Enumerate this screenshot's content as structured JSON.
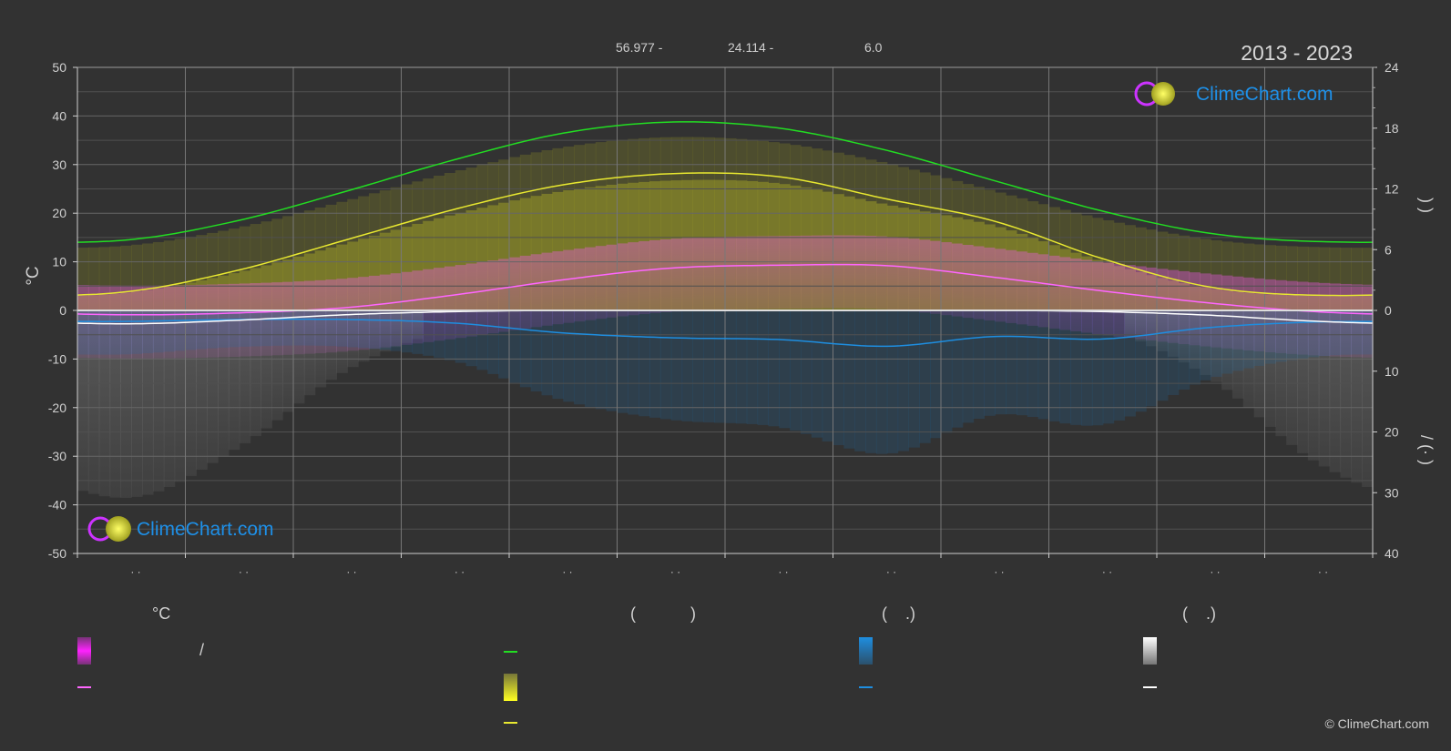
{
  "header": {
    "coords": [
      "56.977 -",
      "24.114 -",
      "6.0"
    ],
    "period": "2013 - 2023"
  },
  "brand": {
    "name": "ClimeChart.com",
    "copyright": "© ClimeChart.com"
  },
  "colors": {
    "background": "#323232",
    "daylight": "#22dd22",
    "sunshine": "#e8e830",
    "temp_mean": "#ff66ff",
    "precip_mean": "#1e8ee0",
    "snow_mean": "#ffffff",
    "brand": "#1e90e8"
  },
  "legend": {
    "col1": {
      "header": "°C",
      "slash": "/"
    },
    "col2": {
      "header": "(            )"
    },
    "col3": {
      "header": "(    .)"
    },
    "col4": {
      "header": "(    .)"
    }
  },
  "chart_data": {
    "type": "line",
    "x": [
      1,
      2,
      3,
      4,
      5,
      6,
      7,
      8,
      9,
      10,
      11,
      12
    ],
    "x_tick_labels": [
      "· ·",
      "· ·",
      "· ·",
      "· ·",
      "· ·",
      "· ·",
      "· ·",
      "· ·",
      "· ·",
      "· ·",
      "· ·",
      "· ·"
    ],
    "ylabel": "°C",
    "ylim": [
      -50,
      50
    ],
    "y_ticks": [
      -50,
      -40,
      -30,
      -20,
      -10,
      0,
      10,
      20,
      30,
      40,
      50
    ],
    "y2_upper": {
      "ticks": [
        0,
        6,
        12,
        18,
        24
      ],
      "range": [
        0,
        24
      ],
      "label": ")        )"
    },
    "y2_lower": {
      "ticks": [
        0,
        10,
        20,
        30,
        40
      ],
      "range": [
        0,
        40
      ],
      "label": "/    (·   )"
    },
    "grid": true,
    "series": [
      {
        "values": [
          7.0,
          8.9,
          11.8,
          14.9,
          17.5,
          18.6,
          18.0,
          15.8,
          12.8,
          9.8,
          7.6,
          6.8
        ]
      },
      {
        "values": [
          1.9,
          4.0,
          7.0,
          10.0,
          12.4,
          13.5,
          13.2,
          11.0,
          8.8,
          5.1,
          2.3,
          1.5
        ]
      },
      {
        "values": [
          -0.9,
          -0.5,
          0.6,
          3.2,
          6.3,
          8.7,
          9.3,
          9.2,
          6.8,
          4.0,
          1.5,
          -0.3
        ]
      },
      {
        "values": [
          1.8,
          1.5,
          1.5,
          2.1,
          3.7,
          4.5,
          4.8,
          5.9,
          4.3,
          4.7,
          2.8,
          1.9
        ]
      },
      {
        "values": [
          2.2,
          1.6,
          0.7,
          0.2,
          0.0,
          0.0,
          0.0,
          0.0,
          0.0,
          0.2,
          0.8,
          1.8
        ]
      }
    ]
  }
}
